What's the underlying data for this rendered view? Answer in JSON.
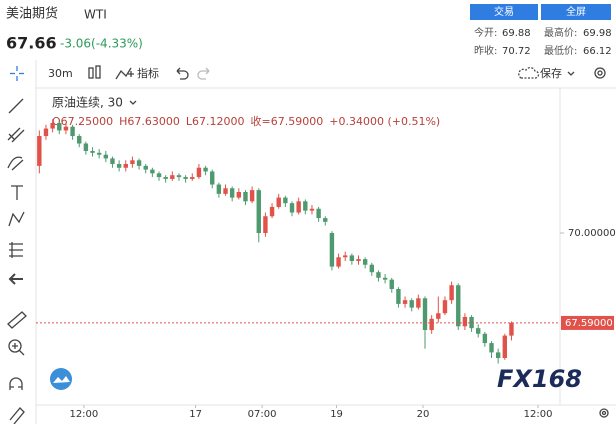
{
  "header": {
    "name": "美油期货",
    "symbol": "WTI",
    "price": "67.66",
    "change": "-3.06(-4.33%)",
    "buttons": [
      "交易",
      "全屏"
    ],
    "stats": [
      {
        "label": "今开:",
        "value": "69.88"
      },
      {
        "label": "最高价:",
        "value": "69.98"
      },
      {
        "label": "昨收:",
        "value": "70.72"
      },
      {
        "label": "最低价:",
        "value": "66.12"
      }
    ]
  },
  "toolbar": {
    "interval": "30m",
    "indicators": "指标",
    "save": "保存"
  },
  "watermark": "FX168",
  "chart_data": {
    "type": "candlestick",
    "title": "原油连续, 30",
    "ohlc_legend": [
      "O67.25000",
      "H67.63000",
      "L67.12000",
      "收=67.59000",
      "+0.34000 (+0.51%)"
    ],
    "colors": {
      "up": "#e0524a",
      "down": "#4e9a6e"
    },
    "open": [
      71.8,
      72.6,
      72.8,
      72.95,
      72.75,
      72.85,
      72.6,
      72.4,
      72.2,
      72.15,
      72.1,
      72.0,
      71.85,
      71.75,
      71.85,
      71.95,
      71.8,
      71.7,
      71.6,
      71.5,
      71.45,
      71.55,
      71.5,
      71.45,
      71.5,
      71.75,
      71.65,
      71.3,
      71.05,
      71.2,
      70.95,
      71.1,
      70.85,
      71.15,
      70.0,
      70.45,
      70.7,
      70.95,
      70.8,
      70.55,
      70.85,
      70.6,
      70.65,
      70.4,
      70.0,
      69.1,
      69.35,
      69.4,
      69.25,
      69.3,
      69.15,
      68.95,
      68.8,
      68.75,
      68.5,
      68.1,
      68.2,
      68.0,
      68.25,
      67.4,
      67.7,
      67.85,
      68.2,
      68.6,
      67.5,
      67.75,
      67.45,
      67.3,
      67.05,
      66.8,
      66.65,
      67.25
    ],
    "high": [
      72.75,
      72.9,
      73.05,
      73.0,
      72.95,
      72.9,
      72.65,
      72.45,
      72.3,
      72.25,
      72.2,
      72.05,
      71.95,
      71.95,
      72.05,
      72.0,
      71.85,
      71.75,
      71.65,
      71.55,
      71.65,
      71.6,
      71.55,
      71.6,
      71.85,
      71.8,
      71.7,
      71.35,
      71.3,
      71.25,
      71.2,
      71.15,
      71.25,
      71.2,
      70.55,
      70.8,
      71.05,
      71.0,
      70.85,
      70.95,
      70.9,
      70.75,
      70.7,
      70.45,
      70.05,
      69.45,
      69.5,
      69.45,
      69.4,
      69.35,
      69.2,
      69.0,
      68.9,
      68.8,
      68.55,
      68.3,
      68.25,
      68.35,
      68.3,
      67.8,
      68.3,
      68.3,
      68.7,
      68.65,
      67.85,
      67.8,
      67.55,
      67.35,
      67.1,
      66.9,
      67.3,
      67.63
    ],
    "low": [
      71.6,
      72.5,
      72.7,
      72.65,
      72.65,
      72.5,
      72.3,
      72.1,
      72.05,
      72.0,
      71.9,
      71.75,
      71.65,
      71.65,
      71.75,
      71.7,
      71.6,
      71.5,
      71.4,
      71.35,
      71.4,
      71.4,
      71.35,
      71.4,
      71.45,
      71.55,
      71.2,
      70.95,
      71.0,
      70.85,
      70.9,
      70.75,
      70.8,
      69.75,
      69.9,
      70.4,
      70.65,
      70.7,
      70.45,
      70.5,
      70.5,
      70.5,
      70.3,
      70.2,
      69.0,
      69.05,
      69.25,
      69.15,
      69.15,
      69.05,
      68.85,
      68.7,
      68.65,
      68.4,
      68.0,
      68.0,
      67.9,
      67.95,
      66.9,
      67.3,
      67.6,
      67.8,
      68.1,
      67.4,
      67.4,
      67.35,
      67.2,
      66.95,
      66.65,
      66.5,
      66.6,
      67.12
    ],
    "close": [
      72.6,
      72.8,
      72.95,
      72.75,
      72.85,
      72.6,
      72.4,
      72.2,
      72.15,
      72.1,
      72.0,
      71.85,
      71.75,
      71.85,
      71.95,
      71.8,
      71.7,
      71.6,
      71.5,
      71.45,
      71.55,
      71.5,
      71.45,
      71.5,
      71.75,
      71.65,
      71.3,
      71.05,
      71.2,
      70.95,
      71.1,
      70.85,
      71.15,
      70.0,
      70.45,
      70.7,
      70.95,
      70.8,
      70.55,
      70.85,
      70.6,
      70.65,
      70.4,
      70.3,
      69.1,
      69.35,
      69.4,
      69.25,
      69.3,
      69.15,
      68.95,
      68.8,
      68.75,
      68.5,
      68.1,
      68.2,
      68.0,
      68.25,
      67.4,
      67.7,
      67.85,
      68.2,
      68.6,
      67.5,
      67.75,
      67.45,
      67.3,
      67.05,
      66.8,
      66.65,
      67.25,
      67.59
    ],
    "xlim": [
      -0.5,
      78.3
    ],
    "xticks": [
      {
        "value": 6.7,
        "label": "12:00"
      },
      {
        "value": 23.5,
        "label": "17"
      },
      {
        "value": 33.5,
        "label": "07:00"
      },
      {
        "value": 44.7,
        "label": "19"
      },
      {
        "value": 57.7,
        "label": "20"
      },
      {
        "value": 75,
        "label": "12:00"
      }
    ],
    "ylim": [
      65.39,
      73.7
    ],
    "yticks": [
      {
        "value": 70,
        "label": "70.00000"
      }
    ],
    "last_price": {
      "value": 67.59,
      "label": "67.59000"
    }
  }
}
